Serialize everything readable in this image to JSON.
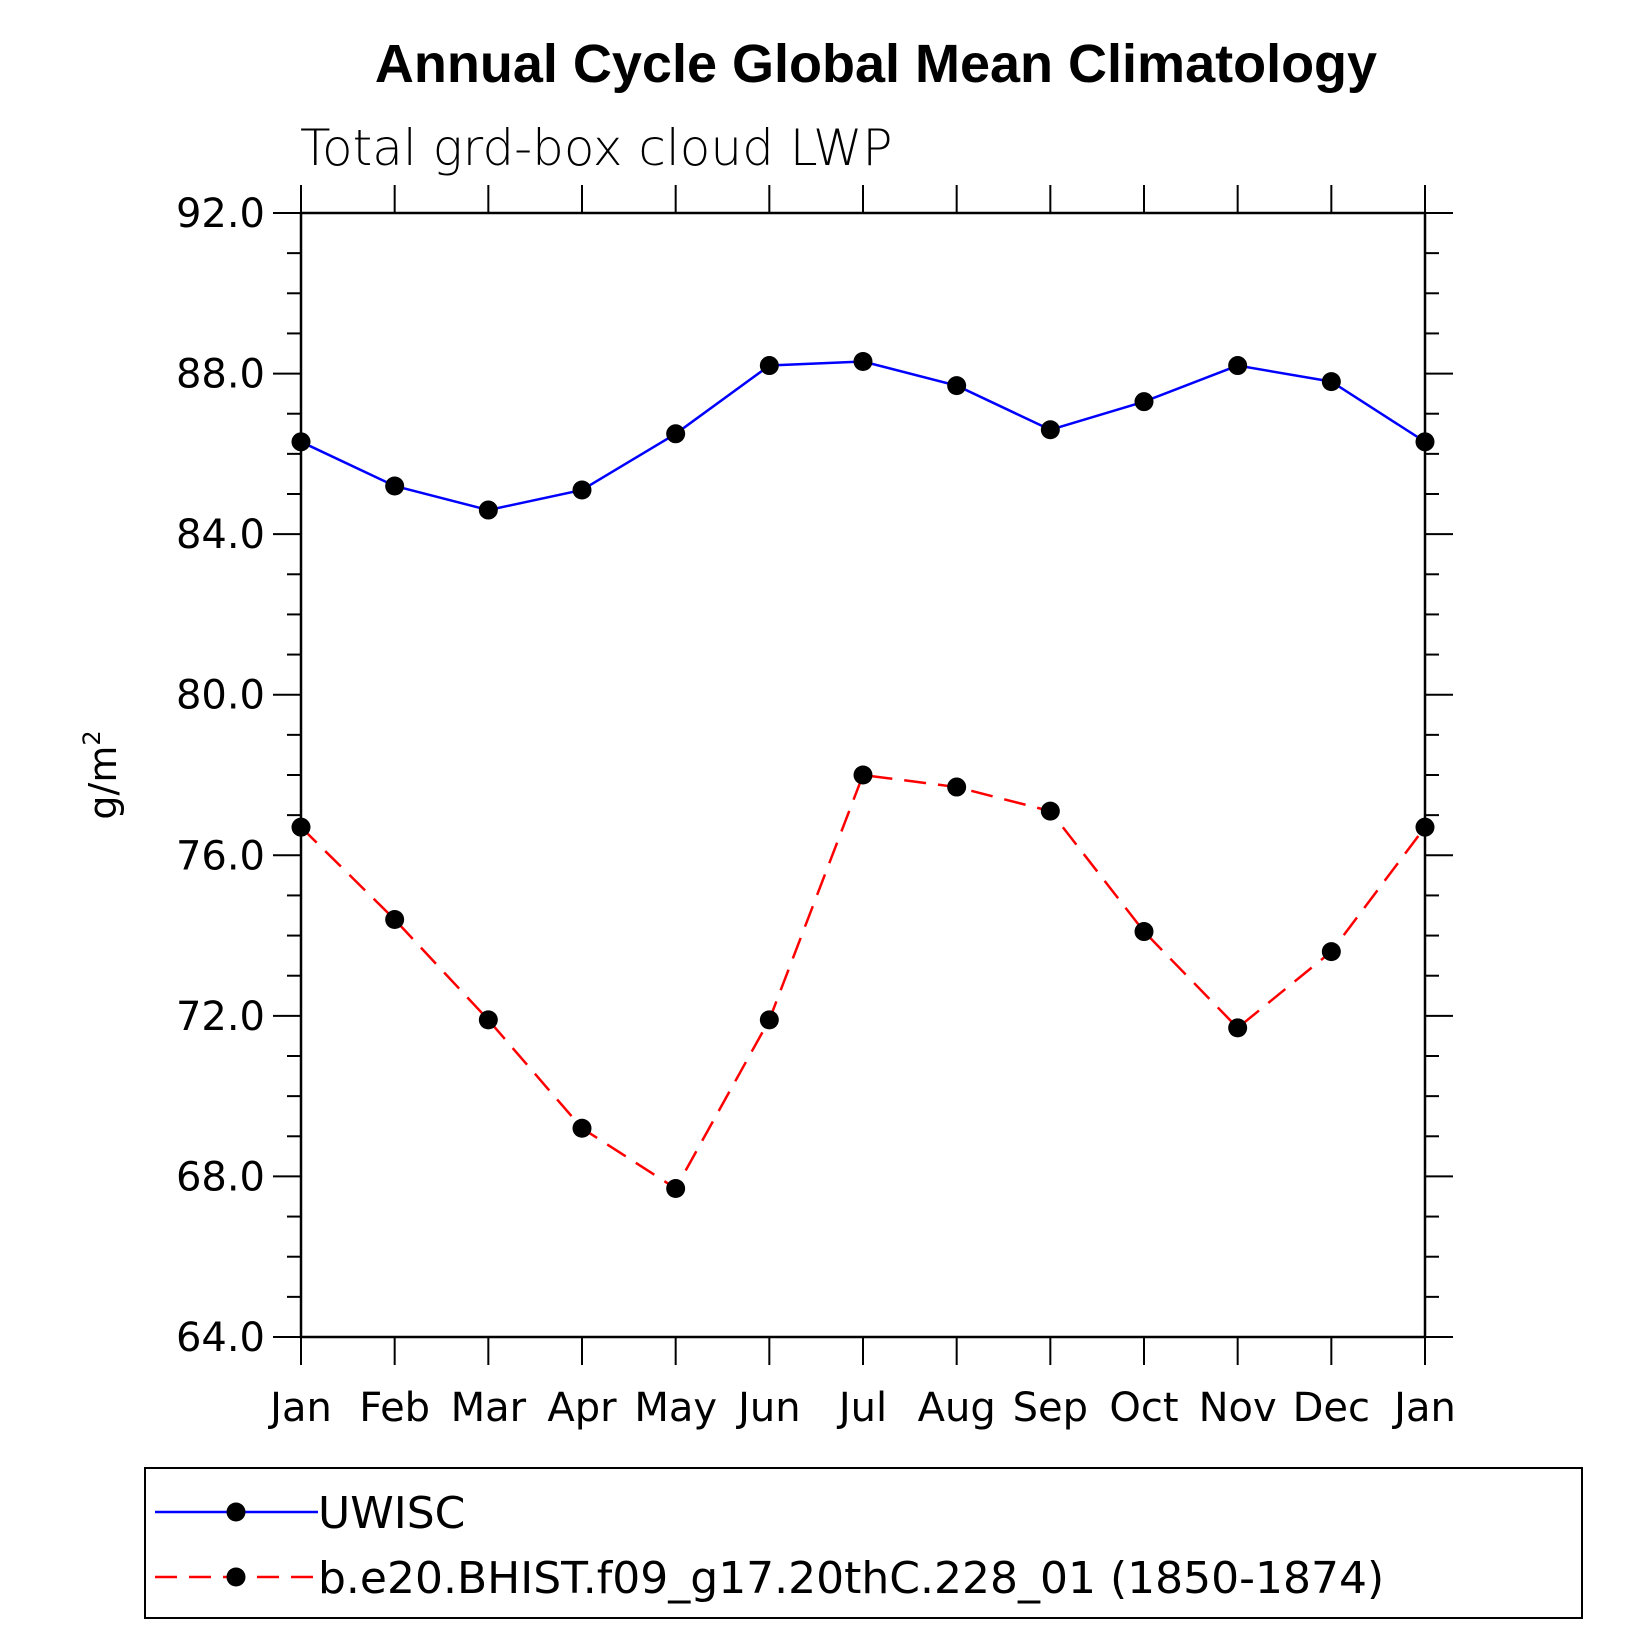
{
  "chart_data": {
    "type": "line",
    "title": "Annual Cycle Global Mean Climatology",
    "subtitle": "Total grd-box cloud LWP",
    "xlabel": "",
    "ylabel": "g/m",
    "ylabel_superscript": "2",
    "categories": [
      "Jan",
      "Feb",
      "Mar",
      "Apr",
      "May",
      "Jun",
      "Jul",
      "Aug",
      "Sep",
      "Oct",
      "Nov",
      "Dec",
      "Jan"
    ],
    "ylim": [
      64.0,
      92.0
    ],
    "yticks": [
      "64.0",
      "68.0",
      "72.0",
      "76.0",
      "80.0",
      "84.0",
      "88.0",
      "92.0"
    ],
    "series": [
      {
        "name": "UWISC",
        "color": "#0000ff",
        "dash": "solid",
        "values": [
          86.3,
          85.2,
          84.6,
          85.1,
          86.5,
          88.2,
          88.3,
          87.7,
          86.6,
          87.3,
          88.2,
          87.8,
          86.3
        ]
      },
      {
        "name": "b.e20.BHIST.f09_g17.20thC.228_01 (1850-1874)",
        "color": "#ff0000",
        "dash": "dashed",
        "values": [
          76.7,
          74.4,
          71.9,
          69.2,
          67.7,
          71.9,
          78.0,
          77.7,
          77.1,
          74.1,
          71.7,
          73.6,
          76.7
        ]
      }
    ],
    "marker": "filled-circle",
    "marker_color": "#000000",
    "legend_position": "bottom"
  }
}
